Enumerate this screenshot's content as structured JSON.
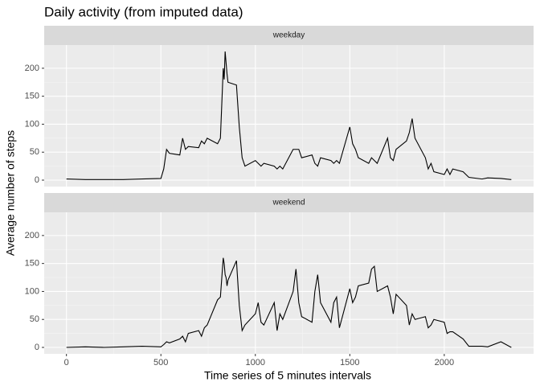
{
  "chart_data": {
    "type": "line",
    "title": "Daily activity (from imputed data)",
    "xlabel": "Time series of 5 minutes intervals",
    "ylabel": "Average number of steps",
    "facets": true,
    "grid": true,
    "x": [
      0,
      100,
      200,
      300,
      400,
      500,
      515,
      530,
      545,
      600,
      615,
      630,
      645,
      700,
      715,
      730,
      745,
      800,
      815,
      830,
      835,
      840,
      845,
      850,
      855,
      900,
      915,
      930,
      945,
      1000,
      1015,
      1030,
      1045,
      1100,
      1115,
      1130,
      1145,
      1200,
      1215,
      1230,
      1245,
      1300,
      1315,
      1330,
      1345,
      1400,
      1415,
      1430,
      1445,
      1500,
      1515,
      1530,
      1545,
      1600,
      1615,
      1630,
      1645,
      1700,
      1715,
      1730,
      1745,
      1800,
      1815,
      1830,
      1845,
      1900,
      1915,
      1930,
      1945,
      2000,
      2015,
      2030,
      2045,
      2100,
      2130,
      2200,
      2230,
      2300,
      2355
    ],
    "series": [
      {
        "name": "weekday",
        "color": "#000000",
        "values": [
          2,
          1,
          1,
          1,
          2,
          3,
          20,
          55,
          48,
          45,
          75,
          55,
          60,
          58,
          70,
          65,
          75,
          65,
          75,
          200,
          180,
          230,
          210,
          190,
          175,
          170,
          95,
          40,
          25,
          35,
          30,
          25,
          30,
          25,
          20,
          25,
          20,
          55,
          55,
          55,
          40,
          45,
          30,
          25,
          40,
          35,
          30,
          35,
          30,
          95,
          65,
          55,
          40,
          30,
          40,
          35,
          30,
          75,
          40,
          35,
          55,
          70,
          85,
          110,
          75,
          40,
          20,
          30,
          15,
          10,
          20,
          10,
          20,
          15,
          5,
          2,
          4,
          3,
          1
        ]
      },
      {
        "name": "weekend",
        "color": "#000000",
        "values": [
          0,
          1,
          0,
          1,
          2,
          1,
          5,
          10,
          8,
          15,
          20,
          10,
          25,
          30,
          20,
          35,
          40,
          85,
          90,
          160,
          150,
          130,
          125,
          110,
          120,
          155,
          75,
          30,
          40,
          60,
          80,
          45,
          40,
          80,
          30,
          60,
          50,
          100,
          140,
          80,
          55,
          45,
          100,
          130,
          80,
          45,
          80,
          90,
          35,
          105,
          80,
          90,
          110,
          115,
          140,
          145,
          100,
          110,
          90,
          60,
          95,
          75,
          40,
          60,
          50,
          55,
          35,
          40,
          50,
          45,
          25,
          28,
          28,
          15,
          2,
          2,
          1,
          10,
          0
        ]
      }
    ],
    "xlim": [
      -117.75,
      2472.75
    ],
    "xticks": [
      0,
      500,
      1000,
      1500,
      2000
    ],
    "ylim": [
      -11.5,
      241.5
    ],
    "yticks": [
      0,
      50,
      100,
      150,
      200
    ]
  }
}
